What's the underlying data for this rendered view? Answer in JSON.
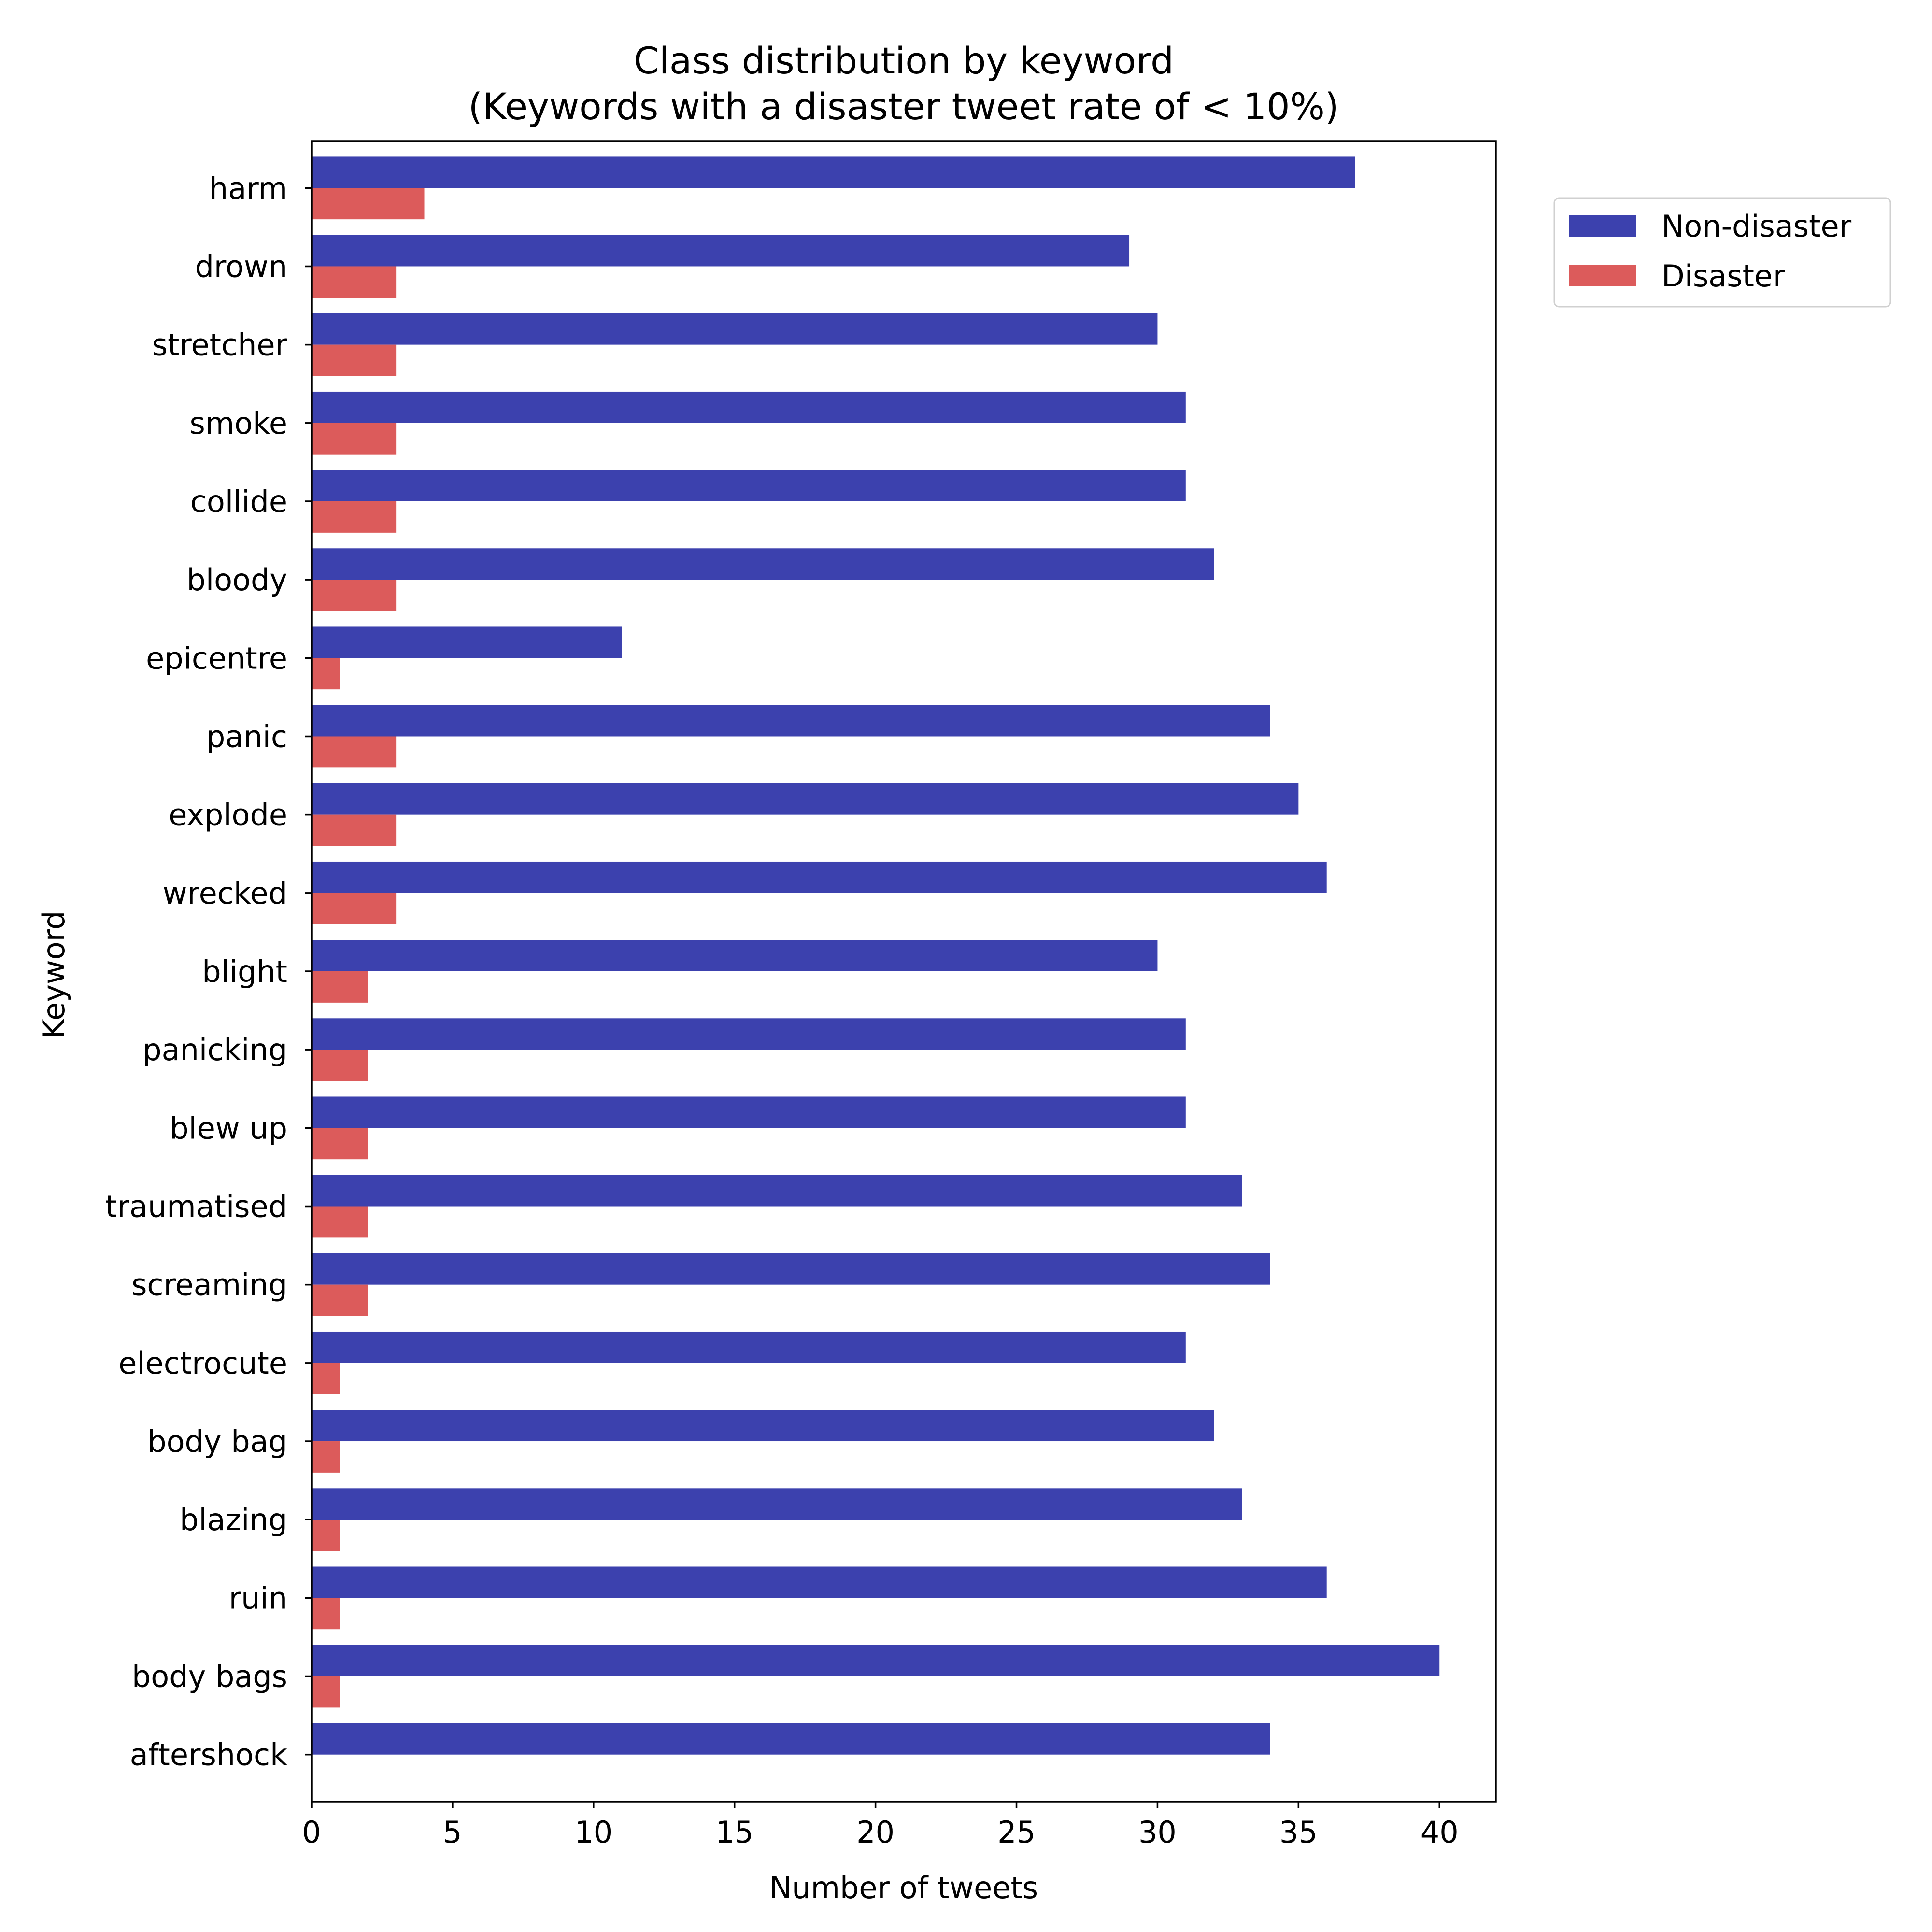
{
  "chart_data": {
    "type": "bar",
    "orientation": "horizontal",
    "title": "Class distribution by keyword",
    "subtitle": "(Keywords with a disaster tweet rate of < 10%)",
    "xlabel": "Number of tweets",
    "ylabel": "Keyword",
    "xlim": [
      0,
      42
    ],
    "xticks": [
      0,
      5,
      10,
      15,
      20,
      25,
      30,
      35,
      40
    ],
    "grid": false,
    "legend_position": "outside-top-right",
    "categories": [
      "harm",
      "drown",
      "stretcher",
      "smoke",
      "collide",
      "bloody",
      "epicentre",
      "panic",
      "explode",
      "wrecked",
      "blight",
      "panicking",
      "blew up",
      "traumatised",
      "screaming",
      "electrocute",
      "body bag",
      "blazing",
      "ruin",
      "body bags",
      "aftershock"
    ],
    "series": [
      {
        "name": "Non-disaster",
        "color": "#3c41ae",
        "values": [
          37,
          29,
          30,
          31,
          31,
          32,
          11,
          34,
          35,
          36,
          30,
          31,
          31,
          33,
          34,
          31,
          32,
          33,
          36,
          40,
          34
        ]
      },
      {
        "name": "Disaster",
        "color": "#dc5b5b",
        "values": [
          4,
          3,
          3,
          3,
          3,
          3,
          1,
          3,
          3,
          3,
          2,
          2,
          2,
          2,
          2,
          1,
          1,
          1,
          1,
          1,
          0
        ]
      }
    ]
  }
}
